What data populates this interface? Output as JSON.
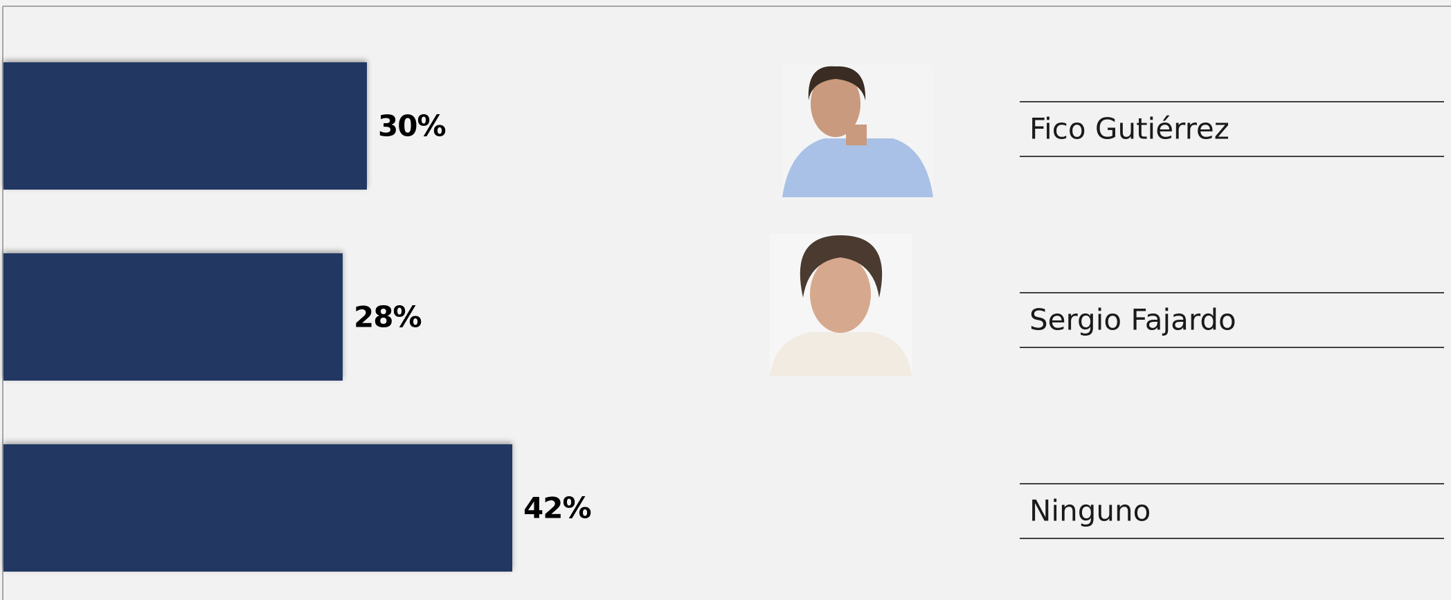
{
  "chart_data": {
    "type": "bar",
    "categories": [
      "Fico Gutiérrez",
      "Sergio Fajardo",
      "Ninguno"
    ],
    "values": [
      30,
      28,
      42
    ],
    "value_labels": [
      "30%",
      "28%",
      "42%"
    ],
    "color": "#203864"
  }
}
